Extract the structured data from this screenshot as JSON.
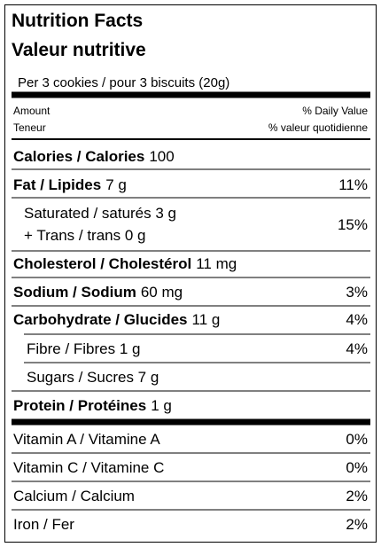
{
  "title": "Nutrition Facts",
  "subtitle": "Valeur nutritive",
  "serving": "Per 3 cookies / pour 3 biscuits (20g)",
  "column_headers": {
    "amount": "Amount",
    "amount_fr": "Teneur",
    "daily_value": "% Daily Value",
    "daily_value_fr": "% valeur quotidienne"
  },
  "rows": [
    {
      "label": "Calories / Calories",
      "amount": "100"
    },
    {
      "label": "Fat / Lipides",
      "amount": "7 g",
      "daily_value": "11%"
    },
    {
      "label": "Saturated / saturés 3 g",
      "label2": "+ Trans / trans 0 g",
      "daily_value": "15%"
    },
    {
      "label": "Cholesterol / Cholestérol",
      "amount": "11 mg"
    },
    {
      "label": "Sodium / Sodium",
      "amount": "60 mg",
      "daily_value": "3%"
    },
    {
      "label": "Carbohydrate / Glucides",
      "amount": "11 g",
      "daily_value": "4%"
    },
    {
      "label": "Fibre / Fibres 1 g",
      "daily_value": "4%"
    },
    {
      "label": "Sugars / Sucres 7 g"
    },
    {
      "label": "Protein / Protéines",
      "amount": "1 g"
    },
    {
      "label": "Vitamin A / Vitamine A",
      "daily_value": "0%"
    },
    {
      "label": "Vitamin C / Vitamine C",
      "daily_value": "0%"
    },
    {
      "label": "Calcium / Calcium",
      "daily_value": "2%"
    },
    {
      "label": "Iron / Fer",
      "daily_value": "2%"
    }
  ]
}
